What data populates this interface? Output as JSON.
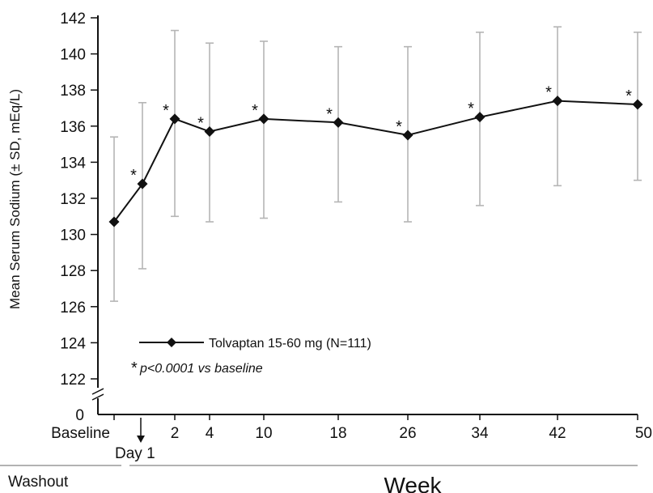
{
  "chart_data": {
    "type": "line",
    "ylabel": "Mean Serum Sodium (± SD, mEq/L)",
    "ylim": [
      122,
      142
    ],
    "y_ticks": [
      "142",
      "140",
      "138",
      "136",
      "134",
      "132",
      "130",
      "128",
      "126",
      "124",
      "122"
    ],
    "y_break_tick": "0",
    "x_tick_labels": [
      "Baseline",
      "2",
      "4",
      "10",
      "18",
      "26",
      "34",
      "42",
      "50"
    ],
    "day1_label": "Day 1",
    "xlabel": "Week",
    "washout_label": "Washout",
    "grid": false,
    "legend_position": "bottom-left",
    "series": [
      {
        "name": "Tolvaptan 15-60 mg (N=111)",
        "color": "#111111",
        "points": [
          {
            "label": "Baseline",
            "mean": 130.7,
            "sd_low": 126.3,
            "sd_high": 135.4,
            "significant": false
          },
          {
            "label": "Day 1",
            "mean": 132.8,
            "sd_low": 128.1,
            "sd_high": 137.3,
            "significant": true
          },
          {
            "label": "2",
            "mean": 136.4,
            "sd_low": 131.0,
            "sd_high": 141.3,
            "significant": true
          },
          {
            "label": "4",
            "mean": 135.7,
            "sd_low": 130.7,
            "sd_high": 140.6,
            "significant": true
          },
          {
            "label": "10",
            "mean": 136.4,
            "sd_low": 130.9,
            "sd_high": 140.7,
            "significant": true
          },
          {
            "label": "18",
            "mean": 136.2,
            "sd_low": 131.8,
            "sd_high": 140.4,
            "significant": true
          },
          {
            "label": "26",
            "mean": 135.5,
            "sd_low": 130.7,
            "sd_high": 140.4,
            "significant": true
          },
          {
            "label": "34",
            "mean": 136.5,
            "sd_low": 131.6,
            "sd_high": 141.2,
            "significant": true
          },
          {
            "label": "42",
            "mean": 137.4,
            "sd_low": 132.7,
            "sd_high": 141.5,
            "significant": true
          },
          {
            "label": "50",
            "mean": 137.2,
            "sd_low": 133.0,
            "sd_high": 141.2,
            "significant": true
          }
        ]
      }
    ],
    "significance_marker": "*",
    "significance_note": "p<0.0001 vs baseline",
    "error_bar_color": "#b5b5b5"
  }
}
